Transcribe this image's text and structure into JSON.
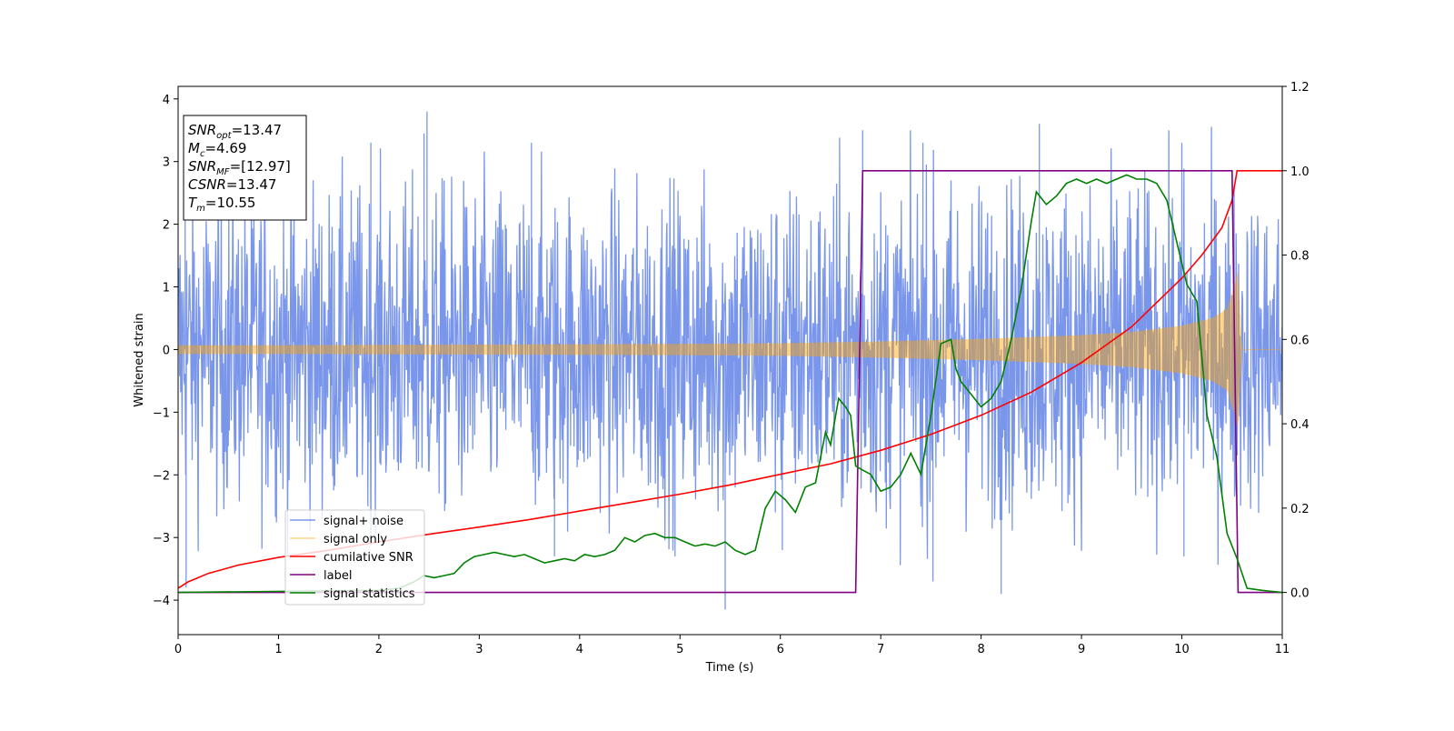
{
  "chart_data": {
    "type": "line",
    "title": "",
    "xlabel": "Time (s)",
    "ylabel": "Whitened strain",
    "xlim": [
      0,
      11
    ],
    "ylim": [
      -4.55,
      4.2
    ],
    "y2lim": [
      -0.1,
      1.2
    ],
    "xticks": [
      0,
      1,
      2,
      3,
      4,
      5,
      6,
      7,
      8,
      9,
      10,
      11
    ],
    "yticks": [
      -4,
      -3,
      -2,
      -1,
      0,
      1,
      2,
      3,
      4
    ],
    "y2ticks": [
      0.0,
      0.2,
      0.4,
      0.6,
      0.8,
      1.0,
      1.2
    ],
    "ytick_labels": [
      "−4",
      "−3",
      "−2",
      "−1",
      "0",
      "1",
      "2",
      "3",
      "4"
    ],
    "y2tick_labels": [
      "0.0",
      "0.2",
      "0.4",
      "0.6",
      "0.8",
      "1.0",
      "1.2"
    ],
    "grid": false,
    "legend_placement": "lower-left",
    "info_box": {
      "lines": [
        {
          "sym": "SNR",
          "sub": "opt",
          "value": "=13.47"
        },
        {
          "sym": "M",
          "sub": "c",
          "value": "=4.69"
        },
        {
          "sym": "SNR",
          "sub": "MF",
          "value": "=[12.97]"
        },
        {
          "sym": "CSNR",
          "sub": "",
          "value": "=13.47"
        },
        {
          "sym": "T",
          "sub": "m",
          "value": "=10.55"
        }
      ]
    },
    "series": [
      {
        "name": "signal+ noise",
        "color": "#4169e1",
        "axis": "left",
        "kind": "noise",
        "envelope_t": [
          0,
          1,
          2,
          3,
          4,
          5,
          6,
          7,
          8,
          9,
          10,
          10.55,
          11
        ],
        "envelope_upper": [
          3.4,
          3.5,
          3.4,
          3.5,
          3.4,
          3.5,
          3.5,
          3.5,
          3.5,
          3.5,
          3.5,
          3.6,
          3.0
        ],
        "envelope_lower": [
          -3.2,
          -3.3,
          -3.3,
          -3.4,
          -3.3,
          -3.4,
          -3.5,
          -3.5,
          -3.6,
          -3.5,
          -3.5,
          -3.4,
          -3.0
        ],
        "spikes": [
          {
            "t": 2.48,
            "v": 3.8
          },
          {
            "t": 0.07,
            "v": 3.3
          },
          {
            "t": 2.45,
            "v": 3.45
          },
          {
            "t": 1.92,
            "v": 3.3
          },
          {
            "t": 3.52,
            "v": 3.3
          },
          {
            "t": 6.82,
            "v": 3.5
          },
          {
            "t": 7.42,
            "v": 3.3
          },
          {
            "t": 8.58,
            "v": 3.6
          },
          {
            "t": 10.0,
            "v": 3.3
          },
          {
            "t": 5.45,
            "v": -4.15
          },
          {
            "t": 0.08,
            "v": -3.8
          },
          {
            "t": 3.75,
            "v": -3.3
          },
          {
            "t": 7.52,
            "v": -3.7
          },
          {
            "t": 8.2,
            "v": -3.9
          },
          {
            "t": 10.02,
            "v": -3.3
          },
          {
            "t": 4.95,
            "v": -3.3
          },
          {
            "t": 6.02,
            "v": -3.2
          }
        ]
      },
      {
        "name": "signal only",
        "color": "#ffa500",
        "axis": "left",
        "kind": "chirp",
        "envelope_t": [
          0,
          1,
          2,
          3,
          4,
          5,
          6,
          7,
          8,
          9,
          9.5,
          10,
          10.3,
          10.45,
          10.52,
          10.56,
          10.6,
          11
        ],
        "envelope_amp": [
          0.07,
          0.07,
          0.075,
          0.08,
          0.085,
          0.09,
          0.1,
          0.13,
          0.17,
          0.23,
          0.28,
          0.38,
          0.5,
          0.65,
          1.0,
          1.25,
          0.0,
          0.0
        ]
      },
      {
        "name": "cumilative SNR",
        "color": "#ff0000",
        "axis": "right",
        "x": [
          0,
          0.1,
          0.3,
          0.6,
          1,
          1.5,
          2,
          2.5,
          3,
          3.5,
          4,
          4.5,
          5,
          5.5,
          6,
          6.5,
          7,
          7.5,
          8,
          8.5,
          9,
          9.5,
          10,
          10.2,
          10.4,
          10.5,
          10.55,
          11
        ],
        "values": [
          0.01,
          0.025,
          0.045,
          0.065,
          0.083,
          0.1,
          0.12,
          0.138,
          0.155,
          0.173,
          0.193,
          0.213,
          0.233,
          0.255,
          0.28,
          0.305,
          0.337,
          0.375,
          0.42,
          0.475,
          0.545,
          0.63,
          0.745,
          0.8,
          0.865,
          0.93,
          1.0,
          1.0
        ]
      },
      {
        "name": "label",
        "color": "#800080",
        "axis": "right",
        "x": [
          0,
          6.75,
          6.82,
          10.5,
          10.56,
          11
        ],
        "values": [
          0.0,
          0.0,
          1.0,
          1.0,
          0.0,
          0.0
        ]
      },
      {
        "name": "signal statistics",
        "color": "#008000",
        "axis": "right",
        "x": [
          0,
          2.0,
          2.2,
          2.35,
          2.45,
          2.55,
          2.65,
          2.75,
          2.85,
          2.95,
          3.05,
          3.15,
          3.25,
          3.35,
          3.45,
          3.55,
          3.65,
          3.75,
          3.85,
          3.95,
          4.05,
          4.15,
          4.25,
          4.35,
          4.45,
          4.55,
          4.65,
          4.75,
          4.85,
          4.95,
          5.05,
          5.15,
          5.25,
          5.35,
          5.45,
          5.55,
          5.65,
          5.75,
          5.85,
          5.95,
          6.05,
          6.15,
          6.25,
          6.35,
          6.45,
          6.5,
          6.58,
          6.65,
          6.7,
          6.75,
          6.82,
          6.9,
          7.0,
          7.1,
          7.2,
          7.3,
          7.4,
          7.5,
          7.6,
          7.7,
          7.75,
          7.8,
          7.9,
          8.0,
          8.1,
          8.2,
          8.3,
          8.4,
          8.5,
          8.55,
          8.65,
          8.75,
          8.85,
          8.95,
          9.05,
          9.15,
          9.25,
          9.35,
          9.45,
          9.55,
          9.65,
          9.75,
          9.85,
          9.95,
          10.05,
          10.15,
          10.25,
          10.35,
          10.45,
          10.55,
          10.65,
          10.8,
          11
        ],
        "values": [
          0.0,
          0.005,
          0.01,
          0.025,
          0.04,
          0.035,
          0.04,
          0.045,
          0.07,
          0.085,
          0.09,
          0.095,
          0.09,
          0.085,
          0.09,
          0.08,
          0.07,
          0.075,
          0.08,
          0.075,
          0.09,
          0.085,
          0.09,
          0.1,
          0.13,
          0.12,
          0.135,
          0.14,
          0.13,
          0.13,
          0.12,
          0.11,
          0.115,
          0.11,
          0.12,
          0.1,
          0.09,
          0.1,
          0.2,
          0.24,
          0.22,
          0.19,
          0.25,
          0.26,
          0.38,
          0.35,
          0.46,
          0.44,
          0.42,
          0.3,
          0.29,
          0.28,
          0.24,
          0.25,
          0.28,
          0.33,
          0.28,
          0.42,
          0.59,
          0.6,
          0.53,
          0.5,
          0.47,
          0.44,
          0.46,
          0.5,
          0.6,
          0.72,
          0.88,
          0.95,
          0.92,
          0.94,
          0.97,
          0.98,
          0.97,
          0.98,
          0.97,
          0.98,
          0.99,
          0.98,
          0.98,
          0.97,
          0.93,
          0.83,
          0.73,
          0.69,
          0.42,
          0.32,
          0.14,
          0.08,
          0.01,
          0.005,
          0.0
        ]
      }
    ]
  }
}
